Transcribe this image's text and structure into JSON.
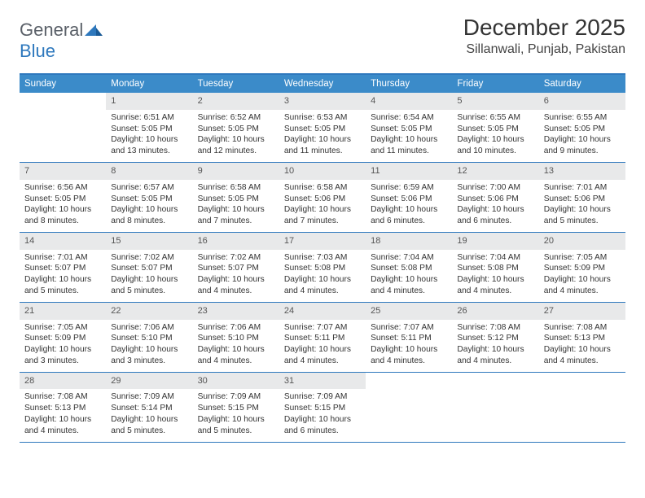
{
  "logo": {
    "text1": "General",
    "text2": "Blue"
  },
  "title": "December 2025",
  "location": "Sillanwali, Punjab, Pakistan",
  "colors": {
    "header_bg": "#3b8bc9",
    "border": "#2e78bd",
    "daynum_bg": "#e8e9ea",
    "text": "#333333"
  },
  "day_labels": [
    "Sunday",
    "Monday",
    "Tuesday",
    "Wednesday",
    "Thursday",
    "Friday",
    "Saturday"
  ],
  "weeks": [
    [
      {
        "n": "",
        "sr": "",
        "ss": "",
        "dl": ""
      },
      {
        "n": "1",
        "sr": "Sunrise: 6:51 AM",
        "ss": "Sunset: 5:05 PM",
        "dl": "Daylight: 10 hours and 13 minutes."
      },
      {
        "n": "2",
        "sr": "Sunrise: 6:52 AM",
        "ss": "Sunset: 5:05 PM",
        "dl": "Daylight: 10 hours and 12 minutes."
      },
      {
        "n": "3",
        "sr": "Sunrise: 6:53 AM",
        "ss": "Sunset: 5:05 PM",
        "dl": "Daylight: 10 hours and 11 minutes."
      },
      {
        "n": "4",
        "sr": "Sunrise: 6:54 AM",
        "ss": "Sunset: 5:05 PM",
        "dl": "Daylight: 10 hours and 11 minutes."
      },
      {
        "n": "5",
        "sr": "Sunrise: 6:55 AM",
        "ss": "Sunset: 5:05 PM",
        "dl": "Daylight: 10 hours and 10 minutes."
      },
      {
        "n": "6",
        "sr": "Sunrise: 6:55 AM",
        "ss": "Sunset: 5:05 PM",
        "dl": "Daylight: 10 hours and 9 minutes."
      }
    ],
    [
      {
        "n": "7",
        "sr": "Sunrise: 6:56 AM",
        "ss": "Sunset: 5:05 PM",
        "dl": "Daylight: 10 hours and 8 minutes."
      },
      {
        "n": "8",
        "sr": "Sunrise: 6:57 AM",
        "ss": "Sunset: 5:05 PM",
        "dl": "Daylight: 10 hours and 8 minutes."
      },
      {
        "n": "9",
        "sr": "Sunrise: 6:58 AM",
        "ss": "Sunset: 5:05 PM",
        "dl": "Daylight: 10 hours and 7 minutes."
      },
      {
        "n": "10",
        "sr": "Sunrise: 6:58 AM",
        "ss": "Sunset: 5:06 PM",
        "dl": "Daylight: 10 hours and 7 minutes."
      },
      {
        "n": "11",
        "sr": "Sunrise: 6:59 AM",
        "ss": "Sunset: 5:06 PM",
        "dl": "Daylight: 10 hours and 6 minutes."
      },
      {
        "n": "12",
        "sr": "Sunrise: 7:00 AM",
        "ss": "Sunset: 5:06 PM",
        "dl": "Daylight: 10 hours and 6 minutes."
      },
      {
        "n": "13",
        "sr": "Sunrise: 7:01 AM",
        "ss": "Sunset: 5:06 PM",
        "dl": "Daylight: 10 hours and 5 minutes."
      }
    ],
    [
      {
        "n": "14",
        "sr": "Sunrise: 7:01 AM",
        "ss": "Sunset: 5:07 PM",
        "dl": "Daylight: 10 hours and 5 minutes."
      },
      {
        "n": "15",
        "sr": "Sunrise: 7:02 AM",
        "ss": "Sunset: 5:07 PM",
        "dl": "Daylight: 10 hours and 5 minutes."
      },
      {
        "n": "16",
        "sr": "Sunrise: 7:02 AM",
        "ss": "Sunset: 5:07 PM",
        "dl": "Daylight: 10 hours and 4 minutes."
      },
      {
        "n": "17",
        "sr": "Sunrise: 7:03 AM",
        "ss": "Sunset: 5:08 PM",
        "dl": "Daylight: 10 hours and 4 minutes."
      },
      {
        "n": "18",
        "sr": "Sunrise: 7:04 AM",
        "ss": "Sunset: 5:08 PM",
        "dl": "Daylight: 10 hours and 4 minutes."
      },
      {
        "n": "19",
        "sr": "Sunrise: 7:04 AM",
        "ss": "Sunset: 5:08 PM",
        "dl": "Daylight: 10 hours and 4 minutes."
      },
      {
        "n": "20",
        "sr": "Sunrise: 7:05 AM",
        "ss": "Sunset: 5:09 PM",
        "dl": "Daylight: 10 hours and 4 minutes."
      }
    ],
    [
      {
        "n": "21",
        "sr": "Sunrise: 7:05 AM",
        "ss": "Sunset: 5:09 PM",
        "dl": "Daylight: 10 hours and 3 minutes."
      },
      {
        "n": "22",
        "sr": "Sunrise: 7:06 AM",
        "ss": "Sunset: 5:10 PM",
        "dl": "Daylight: 10 hours and 3 minutes."
      },
      {
        "n": "23",
        "sr": "Sunrise: 7:06 AM",
        "ss": "Sunset: 5:10 PM",
        "dl": "Daylight: 10 hours and 4 minutes."
      },
      {
        "n": "24",
        "sr": "Sunrise: 7:07 AM",
        "ss": "Sunset: 5:11 PM",
        "dl": "Daylight: 10 hours and 4 minutes."
      },
      {
        "n": "25",
        "sr": "Sunrise: 7:07 AM",
        "ss": "Sunset: 5:11 PM",
        "dl": "Daylight: 10 hours and 4 minutes."
      },
      {
        "n": "26",
        "sr": "Sunrise: 7:08 AM",
        "ss": "Sunset: 5:12 PM",
        "dl": "Daylight: 10 hours and 4 minutes."
      },
      {
        "n": "27",
        "sr": "Sunrise: 7:08 AM",
        "ss": "Sunset: 5:13 PM",
        "dl": "Daylight: 10 hours and 4 minutes."
      }
    ],
    [
      {
        "n": "28",
        "sr": "Sunrise: 7:08 AM",
        "ss": "Sunset: 5:13 PM",
        "dl": "Daylight: 10 hours and 4 minutes."
      },
      {
        "n": "29",
        "sr": "Sunrise: 7:09 AM",
        "ss": "Sunset: 5:14 PM",
        "dl": "Daylight: 10 hours and 5 minutes."
      },
      {
        "n": "30",
        "sr": "Sunrise: 7:09 AM",
        "ss": "Sunset: 5:15 PM",
        "dl": "Daylight: 10 hours and 5 minutes."
      },
      {
        "n": "31",
        "sr": "Sunrise: 7:09 AM",
        "ss": "Sunset: 5:15 PM",
        "dl": "Daylight: 10 hours and 6 minutes."
      },
      {
        "n": "",
        "sr": "",
        "ss": "",
        "dl": ""
      },
      {
        "n": "",
        "sr": "",
        "ss": "",
        "dl": ""
      },
      {
        "n": "",
        "sr": "",
        "ss": "",
        "dl": ""
      }
    ]
  ]
}
